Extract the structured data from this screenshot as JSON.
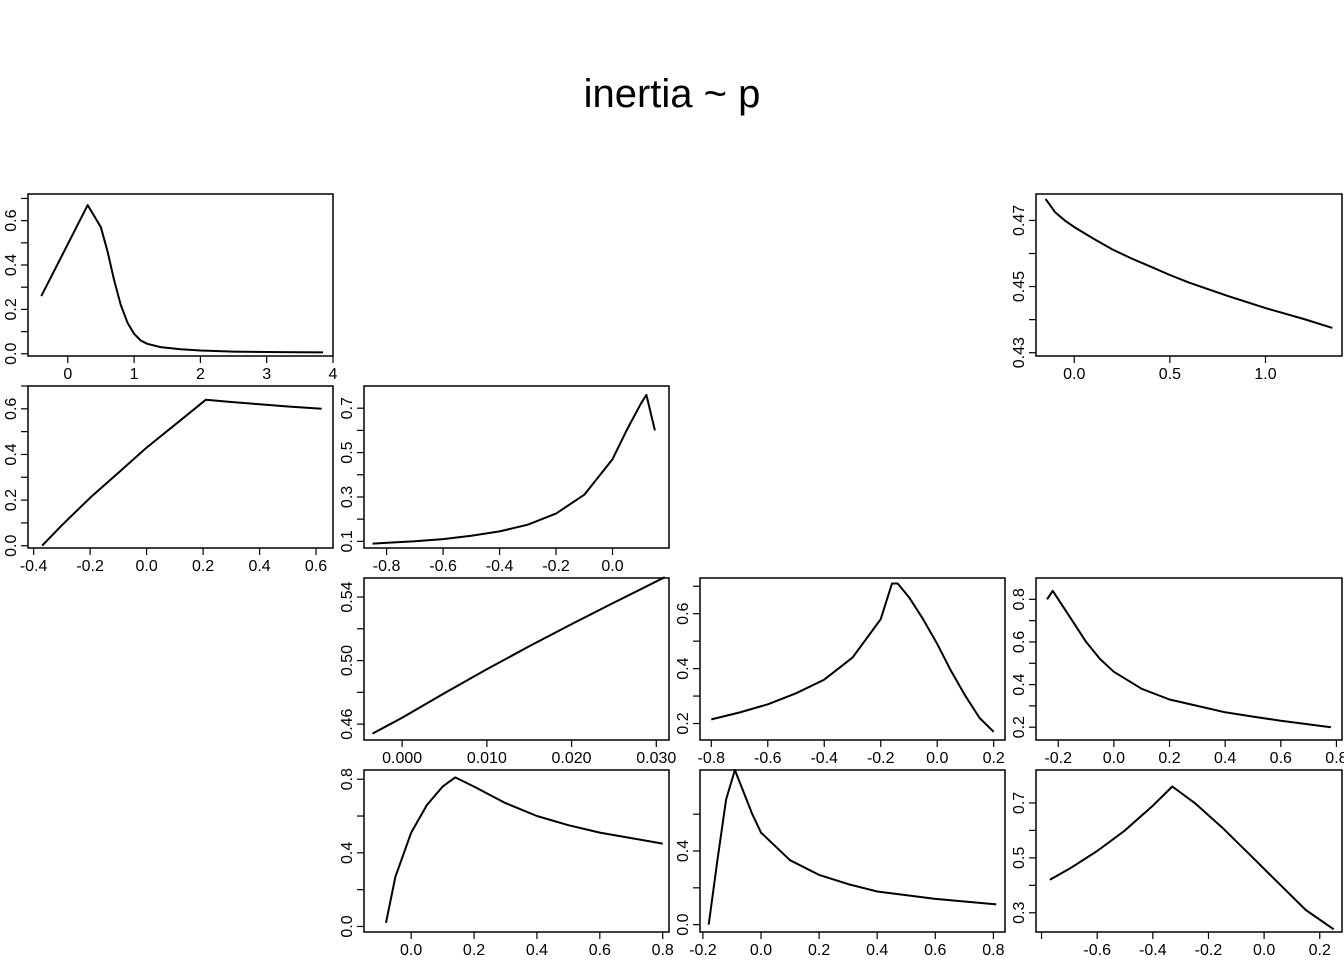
{
  "title": "inertia ~ p",
  "chart_data": [
    {
      "type": "line",
      "title": "",
      "xlabel": "",
      "ylabel": "",
      "xlim": [
        -0.6,
        4.0
      ],
      "ylim": [
        -0.01,
        0.72
      ],
      "xticks": [
        0,
        1,
        2,
        3,
        4
      ],
      "xtick_labels": [
        "0",
        "1",
        "2",
        "3",
        "4"
      ],
      "yticks": [
        0.0,
        0.1,
        0.2,
        0.3,
        0.4,
        0.5,
        0.6,
        0.7
      ],
      "ytick_labels": [
        "0.0",
        "",
        "0.2",
        "",
        "0.4",
        "",
        "0.6",
        ""
      ],
      "x": [
        -0.4,
        0.3,
        0.5,
        0.6,
        0.7,
        0.8,
        0.9,
        1.0,
        1.1,
        1.2,
        1.4,
        1.7,
        2.0,
        2.5,
        3.0,
        3.5,
        3.85
      ],
      "y": [
        0.26,
        0.67,
        0.57,
        0.46,
        0.33,
        0.22,
        0.14,
        0.09,
        0.06,
        0.045,
        0.03,
        0.02,
        0.015,
        0.01,
        0.008,
        0.007,
        0.006
      ]
    },
    {
      "type": "line",
      "title": "",
      "xlabel": "",
      "ylabel": "",
      "xlim": [
        -0.2,
        1.4
      ],
      "ylim": [
        0.429,
        0.478
      ],
      "xticks": [
        0.0,
        0.5,
        1.0
      ],
      "xtick_labels": [
        "0.0",
        "0.5",
        "1.0"
      ],
      "yticks": [
        0.43,
        0.44,
        0.45,
        0.46,
        0.47
      ],
      "ytick_labels": [
        "0.43",
        "",
        "0.45",
        "",
        "0.47"
      ],
      "x": [
        -0.15,
        -0.1,
        -0.05,
        0.0,
        0.1,
        0.2,
        0.3,
        0.4,
        0.5,
        0.6,
        0.8,
        1.0,
        1.2,
        1.35
      ],
      "y": [
        0.4765,
        0.4725,
        0.47,
        0.468,
        0.4645,
        0.4612,
        0.4585,
        0.456,
        0.4535,
        0.4512,
        0.4472,
        0.4435,
        0.4402,
        0.4375
      ]
    },
    {
      "type": "line",
      "title": "",
      "xlabel": "",
      "ylabel": "",
      "xlim": [
        -0.42,
        0.66
      ],
      "ylim": [
        -0.01,
        0.7
      ],
      "xticks": [
        -0.4,
        -0.2,
        0.0,
        0.2,
        0.4,
        0.6
      ],
      "xtick_labels": [
        "-0.4",
        "-0.2",
        "0.0",
        "0.2",
        "0.4",
        "0.6"
      ],
      "yticks": [
        0.0,
        0.1,
        0.2,
        0.3,
        0.4,
        0.5,
        0.6,
        0.7
      ],
      "ytick_labels": [
        "0.0",
        "",
        "0.2",
        "",
        "0.4",
        "",
        "0.6",
        ""
      ],
      "x": [
        -0.37,
        -0.3,
        -0.2,
        -0.1,
        0.0,
        0.1,
        0.21,
        0.3,
        0.4,
        0.5,
        0.62
      ],
      "y": [
        0.0,
        0.09,
        0.21,
        0.32,
        0.43,
        0.53,
        0.64,
        0.63,
        0.62,
        0.61,
        0.6
      ]
    },
    {
      "type": "line",
      "title": "",
      "xlabel": "",
      "ylabel": "",
      "xlim": [
        -0.88,
        0.2
      ],
      "ylim": [
        0.07,
        0.8
      ],
      "xticks": [
        -0.8,
        -0.6,
        -0.4,
        -0.2,
        0.0
      ],
      "xtick_labels": [
        "-0.8",
        "-0.6",
        "-0.4",
        "-0.2",
        "0.0"
      ],
      "yticks": [
        0.1,
        0.2,
        0.3,
        0.4,
        0.5,
        0.6,
        0.7
      ],
      "ytick_labels": [
        "0.1",
        "",
        "0.3",
        "",
        "0.5",
        "",
        "0.7"
      ],
      "x": [
        -0.85,
        -0.7,
        -0.6,
        -0.5,
        -0.4,
        -0.3,
        -0.2,
        -0.1,
        0.0,
        0.05,
        0.1,
        0.12,
        0.15
      ],
      "y": [
        0.09,
        0.1,
        0.11,
        0.125,
        0.145,
        0.175,
        0.225,
        0.31,
        0.47,
        0.6,
        0.72,
        0.76,
        0.6
      ]
    },
    {
      "type": "line",
      "title": "",
      "xlabel": "",
      "ylabel": "",
      "xlim": [
        -0.0045,
        0.0315
      ],
      "ylim": [
        0.45,
        0.552
      ],
      "xticks": [
        0.0,
        0.01,
        0.02,
        0.03
      ],
      "xtick_labels": [
        "0.000",
        "0.010",
        "0.020",
        "0.030"
      ],
      "yticks": [
        0.46,
        0.48,
        0.5,
        0.52,
        0.54
      ],
      "ytick_labels": [
        "0.46",
        "",
        "0.50",
        "",
        "0.54"
      ],
      "x": [
        -0.0035,
        0.0,
        0.005,
        0.01,
        0.015,
        0.02,
        0.025,
        0.031
      ],
      "y": [
        0.454,
        0.464,
        0.4795,
        0.4945,
        0.509,
        0.523,
        0.5365,
        0.5525
      ]
    },
    {
      "type": "line",
      "title": "",
      "xlabel": "",
      "ylabel": "",
      "xlim": [
        -0.84,
        0.24
      ],
      "ylim": [
        0.14,
        0.73
      ],
      "xticks": [
        -0.8,
        -0.6,
        -0.4,
        -0.2,
        0.0,
        0.2
      ],
      "xtick_labels": [
        "-0.8",
        "-0.6",
        "-0.4",
        "-0.2",
        "0.0",
        "0.2"
      ],
      "yticks": [
        0.2,
        0.3,
        0.4,
        0.5,
        0.6,
        0.7
      ],
      "ytick_labels": [
        "0.2",
        "",
        "0.4",
        "",
        "0.6",
        ""
      ],
      "x": [
        -0.8,
        -0.7,
        -0.6,
        -0.5,
        -0.4,
        -0.3,
        -0.2,
        -0.16,
        -0.14,
        -0.1,
        -0.05,
        0.0,
        0.05,
        0.1,
        0.15,
        0.2
      ],
      "y": [
        0.215,
        0.24,
        0.27,
        0.31,
        0.36,
        0.44,
        0.58,
        0.71,
        0.71,
        0.66,
        0.58,
        0.49,
        0.39,
        0.3,
        0.22,
        0.17
      ]
    },
    {
      "type": "line",
      "title": "",
      "xlabel": "",
      "ylabel": "",
      "xlim": [
        -0.28,
        0.82
      ],
      "ylim": [
        0.14,
        0.9
      ],
      "xticks": [
        -0.2,
        0.0,
        0.2,
        0.4,
        0.6,
        0.8
      ],
      "xtick_labels": [
        "-0.2",
        "0.0",
        "0.2",
        "0.4",
        "0.6",
        "0.8"
      ],
      "yticks": [
        0.2,
        0.3,
        0.4,
        0.5,
        0.6,
        0.7,
        0.8
      ],
      "ytick_labels": [
        "0.2",
        "",
        "0.4",
        "",
        "0.6",
        "",
        "0.8"
      ],
      "x": [
        -0.24,
        -0.22,
        -0.2,
        -0.15,
        -0.1,
        -0.05,
        0.0,
        0.1,
        0.2,
        0.3,
        0.4,
        0.5,
        0.6,
        0.78
      ],
      "y": [
        0.8,
        0.84,
        0.8,
        0.7,
        0.6,
        0.52,
        0.46,
        0.38,
        0.33,
        0.3,
        0.27,
        0.25,
        0.23,
        0.2
      ]
    },
    {
      "type": "line",
      "title": "",
      "xlabel": "",
      "ylabel": "",
      "xlim": [
        -0.15,
        0.82
      ],
      "ylim": [
        -0.03,
        0.85
      ],
      "xticks": [
        0.0,
        0.2,
        0.4,
        0.6,
        0.8
      ],
      "xtick_labels": [
        "0.0",
        "0.2",
        "0.4",
        "0.6",
        "0.8"
      ],
      "yticks": [
        0.0,
        0.2,
        0.4,
        0.6,
        0.8
      ],
      "ytick_labels": [
        "0.0",
        "",
        "0.4",
        "",
        "0.8"
      ],
      "x": [
        -0.08,
        -0.05,
        0.0,
        0.05,
        0.1,
        0.14,
        0.2,
        0.3,
        0.4,
        0.5,
        0.6,
        0.7,
        0.8
      ],
      "y": [
        0.02,
        0.27,
        0.51,
        0.66,
        0.76,
        0.81,
        0.76,
        0.67,
        0.6,
        0.55,
        0.51,
        0.48,
        0.45
      ]
    },
    {
      "type": "line",
      "title": "",
      "xlabel": "",
      "ylabel": "",
      "xlim": [
        -0.21,
        0.84
      ],
      "ylim": [
        -0.04,
        0.84
      ],
      "xticks": [
        -0.2,
        0.0,
        0.2,
        0.4,
        0.6,
        0.8
      ],
      "xtick_labels": [
        "-0.2",
        "0.0",
        "0.2",
        "0.4",
        "0.6",
        "0.8"
      ],
      "yticks": [
        0.0,
        0.2,
        0.4,
        0.6
      ],
      "ytick_labels": [
        "0.0",
        "",
        "0.4",
        ""
      ],
      "x": [
        -0.18,
        -0.15,
        -0.12,
        -0.09,
        -0.06,
        -0.03,
        0.0,
        0.1,
        0.2,
        0.3,
        0.4,
        0.6,
        0.81
      ],
      "y": [
        0.0,
        0.35,
        0.68,
        0.84,
        0.72,
        0.6,
        0.5,
        0.35,
        0.27,
        0.22,
        0.18,
        0.14,
        0.11
      ]
    },
    {
      "type": "line",
      "title": "",
      "xlabel": "",
      "ylabel": "",
      "xlim": [
        -0.82,
        0.28
      ],
      "ylim": [
        0.23,
        0.82
      ],
      "xticks": [
        -0.8,
        -0.6,
        -0.4,
        -0.2,
        0.0,
        0.2
      ],
      "xtick_labels": [
        "",
        "-0.6",
        "-0.4",
        "-0.2",
        "0.0",
        "0.2"
      ],
      "yticks": [
        0.3,
        0.4,
        0.5,
        0.6,
        0.7
      ],
      "ytick_labels": [
        "0.3",
        "",
        "0.5",
        "",
        "0.7"
      ],
      "x": [
        -0.77,
        -0.7,
        -0.6,
        -0.5,
        -0.4,
        -0.33,
        -0.25,
        -0.15,
        -0.05,
        0.05,
        0.15,
        0.25
      ],
      "y": [
        0.42,
        0.46,
        0.525,
        0.6,
        0.69,
        0.76,
        0.7,
        0.61,
        0.51,
        0.41,
        0.31,
        0.24
      ]
    }
  ]
}
